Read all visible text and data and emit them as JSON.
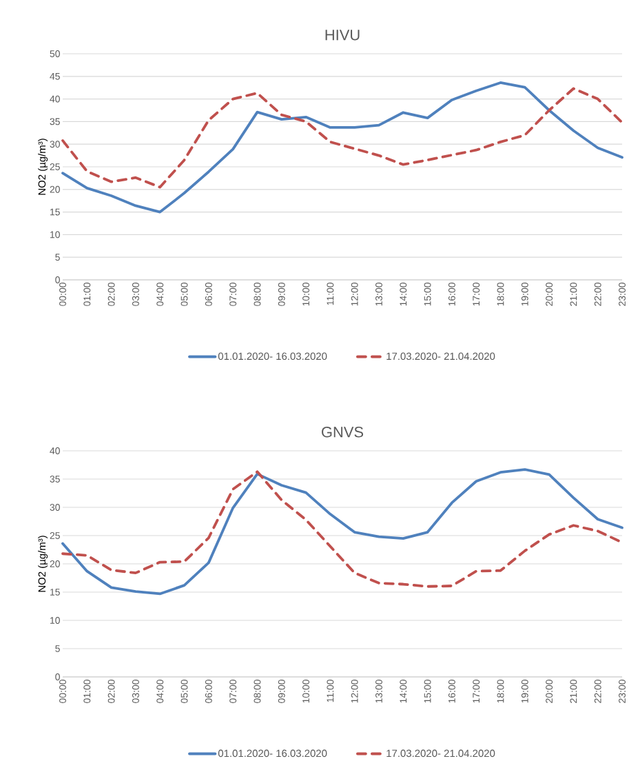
{
  "chart_data": [
    {
      "type": "line",
      "title": "HIVU",
      "ylabel": "NO2 (µg/m³)",
      "categories": [
        "00:00",
        "01:00",
        "02:00",
        "03:00",
        "04:00",
        "05:00",
        "06:00",
        "07:00",
        "08:00",
        "09:00",
        "10:00",
        "11:00",
        "12:00",
        "13:00",
        "14:00",
        "15:00",
        "16:00",
        "17:00",
        "18:00",
        "19:00",
        "20:00",
        "21:00",
        "22:00",
        "23:00"
      ],
      "series": [
        {
          "name": "01.01.2020- 16.03.2020",
          "color": "#4f81bd",
          "line_style": "solid",
          "values": [
            23.6,
            20.3,
            18.6,
            16.4,
            15.0,
            19.2,
            23.9,
            28.9,
            37.1,
            35.5,
            36.0,
            33.7,
            33.7,
            34.2,
            37.0,
            35.8,
            39.8,
            41.8,
            43.6,
            42.6,
            37.5,
            33.0,
            29.2,
            27.1
          ]
        },
        {
          "name": "17.03.2020- 21.04.2020",
          "color": "#c0504d",
          "line_style": "dashed",
          "values": [
            30.8,
            24.0,
            21.7,
            22.6,
            20.5,
            26.5,
            35.3,
            40.0,
            41.3,
            36.5,
            35.0,
            30.5,
            29.0,
            27.5,
            25.5,
            26.5,
            27.6,
            28.7,
            30.5,
            32.0,
            37.5,
            42.3,
            40.0,
            34.8
          ]
        }
      ],
      "ylim": [
        0,
        50
      ],
      "yticks": [
        0,
        5,
        10,
        15,
        20,
        25,
        30,
        35,
        40,
        45,
        50
      ],
      "grid": "y",
      "legend": "bottom"
    },
    {
      "type": "line",
      "title": "GNVS",
      "ylabel": "NO2 (µg/m³)",
      "categories": [
        "00:00",
        "01:00",
        "02:00",
        "03:00",
        "04:00",
        "05:00",
        "06:00",
        "07:00",
        "08:00",
        "09:00",
        "10:00",
        "11:00",
        "12:00",
        "13:00",
        "14:00",
        "15:00",
        "16:00",
        "17:00",
        "18:00",
        "19:00",
        "20:00",
        "21:00",
        "22:00",
        "23:00"
      ],
      "series": [
        {
          "name": "01.01.2020- 16.03.2020",
          "color": "#4f81bd",
          "line_style": "solid",
          "values": [
            23.6,
            18.7,
            15.8,
            15.1,
            14.7,
            16.2,
            20.2,
            29.9,
            35.9,
            33.9,
            32.6,
            28.8,
            25.6,
            24.8,
            24.5,
            25.6,
            30.8,
            34.6,
            36.2,
            36.7,
            35.8,
            31.7,
            27.9,
            26.4
          ]
        },
        {
          "name": "17.03.2020- 21.04.2020",
          "color": "#c0504d",
          "line_style": "dashed",
          "values": [
            21.8,
            21.5,
            18.9,
            18.4,
            20.3,
            20.4,
            24.6,
            33.2,
            36.3,
            31.3,
            27.8,
            23.1,
            18.4,
            16.6,
            16.4,
            16.0,
            16.1,
            18.7,
            18.8,
            22.3,
            25.2,
            26.8,
            25.8,
            23.8
          ]
        }
      ],
      "ylim": [
        0,
        40
      ],
      "yticks": [
        0,
        5,
        10,
        15,
        20,
        25,
        30,
        35,
        40
      ],
      "grid": "y",
      "legend": "bottom"
    }
  ]
}
